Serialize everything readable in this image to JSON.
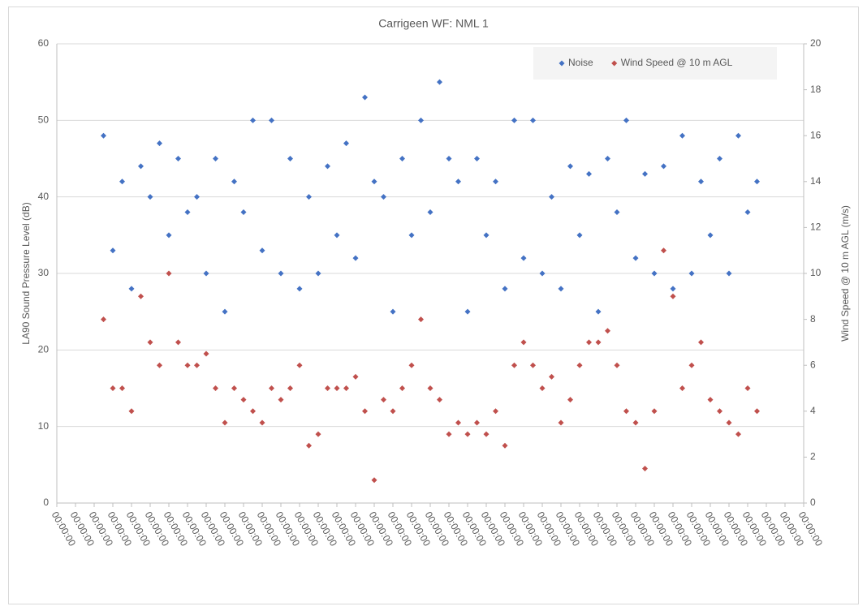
{
  "chart_data": {
    "type": "scatter",
    "title": "Carrigeen WF: NML 1",
    "ylabel": "LA90 Sound Pressure Level (dB)",
    "y2label": "Wind Speed @ 10 m AGL (m/s)",
    "xlim": [
      0,
      40
    ],
    "xticks": [
      {
        "value": 0,
        "label": "00:00:00"
      },
      {
        "value": 1,
        "label": "00:00:00"
      },
      {
        "value": 2,
        "label": "00:00:00"
      },
      {
        "value": 3,
        "label": "00:00:00"
      },
      {
        "value": 4,
        "label": "00:00:00"
      },
      {
        "value": 5,
        "label": "00:00:00"
      },
      {
        "value": 6,
        "label": "00:00:00"
      },
      {
        "value": 7,
        "label": "00:00:00"
      },
      {
        "value": 8,
        "label": "00:00:00"
      },
      {
        "value": 9,
        "label": "00:00:00"
      },
      {
        "value": 10,
        "label": "00:00:00"
      },
      {
        "value": 11,
        "label": "00:00:00"
      },
      {
        "value": 12,
        "label": "00:00:00"
      },
      {
        "value": 13,
        "label": "00:00:00"
      },
      {
        "value": 14,
        "label": "00:00:00"
      },
      {
        "value": 15,
        "label": "00:00:00"
      },
      {
        "value": 16,
        "label": "00:00:00"
      },
      {
        "value": 17,
        "label": "00:00:00"
      },
      {
        "value": 18,
        "label": "00:00:00"
      },
      {
        "value": 19,
        "label": "00:00:00"
      },
      {
        "value": 20,
        "label": "00:00:00"
      },
      {
        "value": 21,
        "label": "00:00:00"
      },
      {
        "value": 22,
        "label": "00:00:00"
      },
      {
        "value": 23,
        "label": "00:00:00"
      },
      {
        "value": 24,
        "label": "00:00:00"
      },
      {
        "value": 25,
        "label": "00:00:00"
      },
      {
        "value": 26,
        "label": "00:00:00"
      },
      {
        "value": 27,
        "label": "00:00:00"
      },
      {
        "value": 28,
        "label": "00:00:00"
      },
      {
        "value": 29,
        "label": "00:00:00"
      },
      {
        "value": 30,
        "label": "00:00:00"
      },
      {
        "value": 31,
        "label": "00:00:00"
      },
      {
        "value": 32,
        "label": "00:00:00"
      },
      {
        "value": 33,
        "label": "00:00:00"
      },
      {
        "value": 34,
        "label": "00:00:00"
      },
      {
        "value": 35,
        "label": "00:00:00"
      },
      {
        "value": 36,
        "label": "00:00:00"
      },
      {
        "value": 37,
        "label": "00:00:00"
      },
      {
        "value": 38,
        "label": "00:00:00"
      },
      {
        "value": 39,
        "label": "00:00:00"
      },
      {
        "value": 40,
        "label": "00:00:00"
      }
    ],
    "ylim": [
      0,
      60
    ],
    "yticks": [
      0,
      10,
      20,
      30,
      40,
      50,
      60
    ],
    "y2lim": [
      0,
      20
    ],
    "y2ticks": [
      0,
      2,
      4,
      6,
      8,
      10,
      12,
      14,
      16,
      18,
      20
    ],
    "grid": true,
    "legend": "top-right",
    "x": [
      2.5,
      3,
      3.5,
      4,
      4.5,
      5,
      5.5,
      6,
      6.5,
      7,
      7.5,
      8,
      8.5,
      9,
      9.5,
      10,
      10.5,
      11,
      11.5,
      12,
      12.5,
      13,
      13.5,
      14,
      14.5,
      15,
      15.5,
      16,
      16.5,
      17,
      17.5,
      18,
      18.5,
      19,
      19.5,
      20,
      20.5,
      21,
      21.5,
      22,
      22.5,
      23,
      23.5,
      24,
      24.5,
      25,
      25.5,
      26,
      26.5,
      27,
      27.5,
      28,
      28.5,
      29,
      29.5,
      30,
      30.5,
      31,
      31.5,
      32,
      32.5,
      33,
      33.5,
      34,
      34.5,
      35,
      35.5,
      36,
      36.5,
      37,
      37.5
    ],
    "series": [
      {
        "name": "Noise",
        "color": "#4472c4",
        "values": [
          48,
          33,
          42,
          28,
          44,
          40,
          47,
          35,
          45,
          38,
          40,
          30,
          45,
          25,
          42,
          38,
          50,
          33,
          50,
          30,
          45,
          28,
          40,
          30,
          44,
          35,
          47,
          32,
          53,
          42,
          40,
          25,
          45,
          35,
          50,
          38,
          55,
          45,
          42,
          25,
          45,
          35,
          42,
          28,
          50,
          32,
          50,
          30,
          40,
          28,
          44,
          35,
          43,
          25,
          45,
          38,
          50,
          32,
          43,
          30,
          44,
          28,
          48,
          30,
          42,
          35,
          45,
          30,
          48,
          38,
          42
        ]
      },
      {
        "name": "Wind Speed @ 10 m AGL",
        "color": "#c0504d",
        "axis": "y2",
        "values": [
          8,
          5,
          5,
          4,
          9,
          7,
          6,
          10,
          7,
          6,
          6,
          6.5,
          5,
          3.5,
          5,
          4.5,
          4,
          3.5,
          5,
          4.5,
          5,
          6,
          2.5,
          3,
          5,
          5,
          5,
          5.5,
          4,
          1,
          4.5,
          4,
          5,
          6,
          8,
          5,
          4.5,
          3,
          3.5,
          3,
          3.5,
          3,
          4,
          2.5,
          6,
          7,
          6,
          5,
          5.5,
          3.5,
          4.5,
          6,
          7,
          7,
          7.5,
          6,
          4,
          3.5,
          1.5,
          4,
          11,
          9,
          5,
          6,
          7,
          4.5,
          4,
          3.5,
          3,
          5,
          4
        ]
      }
    ]
  }
}
